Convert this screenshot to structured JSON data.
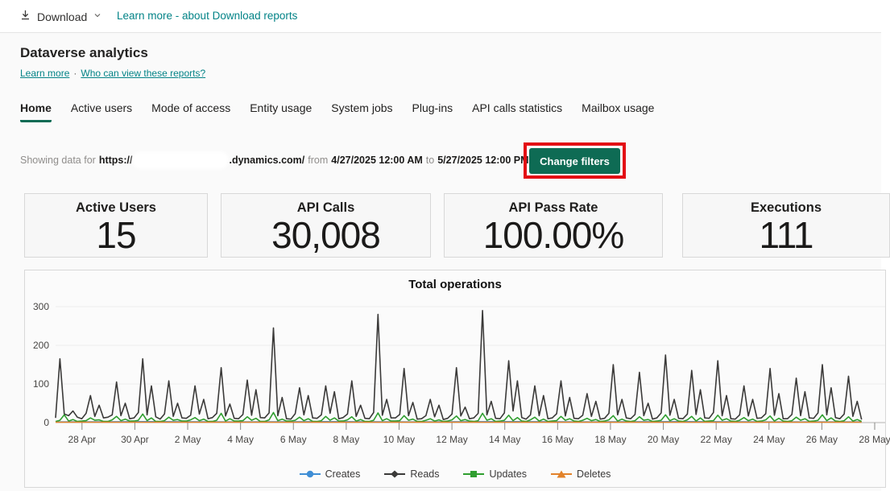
{
  "toolbar": {
    "download_label": "Download",
    "learn_more_link": "Learn more - about Download reports"
  },
  "header": {
    "title": "Dataverse analytics",
    "learn_more": "Learn more",
    "separator": "·",
    "who_can_view": "Who can view these reports?"
  },
  "tabs": [
    {
      "label": "Home",
      "active": true
    },
    {
      "label": "Active users",
      "active": false
    },
    {
      "label": "Mode of access",
      "active": false
    },
    {
      "label": "Entity usage",
      "active": false
    },
    {
      "label": "System jobs",
      "active": false
    },
    {
      "label": "Plug-ins",
      "active": false
    },
    {
      "label": "API calls statistics",
      "active": false
    },
    {
      "label": "Mailbox usage",
      "active": false
    }
  ],
  "filter_bar": {
    "prefix": "Showing data for",
    "url_start": "https://",
    "url_end": ".dynamics.com/",
    "from_word": "from",
    "start_datetime": "4/27/2025 12:00 AM",
    "to_word": "to",
    "end_datetime": "5/27/2025 12:00 PM",
    "button_label": "Change filters"
  },
  "stat_cards": [
    {
      "title": "Active Users",
      "value": "15"
    },
    {
      "title": "API Calls",
      "value": "30,008"
    },
    {
      "title": "API Pass Rate",
      "value": "100.00%"
    },
    {
      "title": "Executions",
      "value": "111"
    }
  ],
  "colors": {
    "link_teal": "#038387",
    "button_green": "#0e6b54",
    "tab_underline_green": "#0e6b54",
    "annotation_red": "#e30d14",
    "grid_line": "#ececec",
    "axis_line": "#b5b3b1"
  },
  "chart_data": {
    "type": "line",
    "title": "Total operations",
    "xlabel": "",
    "ylabel": "",
    "x_range": [
      "27 Apr 2025",
      "28 May 2025"
    ],
    "data_fraction": 0.984,
    "y_ticks": [
      0,
      100,
      200,
      300
    ],
    "ylim": [
      0,
      310
    ],
    "grid": true,
    "legend_position": "bottom",
    "x_tick_labels": [
      "28 Apr",
      "30 Apr",
      "2 May",
      "4 May",
      "6 May",
      "8 May",
      "10 May",
      "12 May",
      "14 May",
      "16 May",
      "18 May",
      "20 May",
      "22 May",
      "24 May",
      "26 May",
      "28 May"
    ],
    "series": [
      {
        "name": "Creates",
        "color": "#3f8ed5",
        "marker": "circle",
        "width": 1.2,
        "values": [
          2,
          3,
          2,
          3,
          2,
          3,
          2,
          3,
          2,
          2
        ]
      },
      {
        "name": "Reads",
        "color": "#3b3a39",
        "marker": "diamond",
        "width": 1.6,
        "values": [
          12,
          165,
          22,
          18,
          30,
          14,
          10,
          24,
          70,
          16,
          45,
          12,
          14,
          20,
          105,
          18,
          50,
          10,
          12,
          26,
          165,
          20,
          95,
          15,
          9,
          22,
          108,
          16,
          50,
          12,
          11,
          19,
          95,
          22,
          60,
          10,
          13,
          24,
          142,
          17,
          48,
          11,
          10,
          21,
          110,
          19,
          85,
          13,
          12,
          25,
          245,
          18,
          65,
          10,
          9,
          23,
          90,
          20,
          70,
          12,
          11,
          20,
          95,
          24,
          80,
          10,
          13,
          22,
          108,
          16,
          45,
          11,
          10,
          26,
          280,
          19,
          60,
          12,
          12,
          21,
          140,
          18,
          52,
          9,
          10,
          18,
          60,
          15,
          45,
          8,
          11,
          22,
          142,
          17,
          40,
          10,
          12,
          24,
          290,
          20,
          55,
          11,
          10,
          25,
          160,
          30,
          108,
          13,
          9,
          20,
          95,
          18,
          70,
          10,
          12,
          23,
          108,
          17,
          65,
          11,
          10,
          19,
          75,
          16,
          55,
          9,
          11,
          24,
          150,
          20,
          60,
          12,
          10,
          21,
          130,
          18,
          50,
          9,
          12,
          25,
          175,
          19,
          60,
          11,
          10,
          22,
          135,
          21,
          85,
          12,
          11,
          26,
          160,
          18,
          70,
          10,
          9,
          20,
          95,
          17,
          60,
          11,
          12,
          23,
          140,
          19,
          75,
          10,
          10,
          21,
          115,
          18,
          80,
          12,
          11,
          25,
          150,
          20,
          90,
          13,
          10,
          22,
          120,
          16,
          55,
          8
        ]
      },
      {
        "name": "Updates",
        "color": "#2f9e2f",
        "marker": "square",
        "width": 1.6,
        "values": [
          3,
          6,
          20,
          4,
          8,
          3,
          4,
          5,
          12,
          6,
          7,
          3,
          3,
          7,
          16,
          5,
          9,
          4,
          4,
          6,
          22,
          5,
          12,
          3,
          3,
          5,
          14,
          6,
          8,
          4,
          4,
          7,
          13,
          5,
          9,
          3,
          3,
          6,
          24,
          4,
          10,
          4,
          4,
          5,
          15,
          6,
          11,
          3,
          3,
          7,
          26,
          5,
          9,
          4,
          4,
          6,
          14,
          5,
          10,
          3,
          3,
          5,
          16,
          6,
          12,
          4,
          4,
          7,
          15,
          4,
          8,
          3,
          3,
          6,
          25,
          5,
          10,
          4,
          4,
          5,
          18,
          6,
          9,
          3,
          3,
          6,
          10,
          4,
          7,
          3,
          4,
          7,
          17,
          5,
          8,
          4,
          3,
          5,
          24,
          6,
          10,
          3,
          4,
          6,
          19,
          5,
          13,
          4,
          3,
          7,
          14,
          4,
          9,
          3,
          4,
          5,
          16,
          6,
          10,
          4,
          3,
          6,
          11,
          5,
          8,
          3,
          4,
          7,
          18,
          4,
          9,
          4,
          3,
          5,
          15,
          6,
          8,
          3,
          4,
          6,
          20,
          5,
          10,
          4,
          3,
          7,
          16,
          4,
          12,
          3,
          4,
          5,
          19,
          6,
          10,
          4,
          3,
          6,
          13,
          5,
          9,
          3,
          4,
          7,
          17,
          4,
          11,
          4,
          3,
          5,
          14,
          6,
          10,
          3,
          4,
          6,
          20,
          5,
          12,
          4,
          3,
          5,
          15,
          4,
          8,
          3
        ]
      },
      {
        "name": "Deletes",
        "color": "#e2822a",
        "marker": "triangle",
        "width": 1.6,
        "values": [
          1,
          1,
          1,
          1,
          1,
          1,
          1,
          1
        ]
      }
    ]
  }
}
